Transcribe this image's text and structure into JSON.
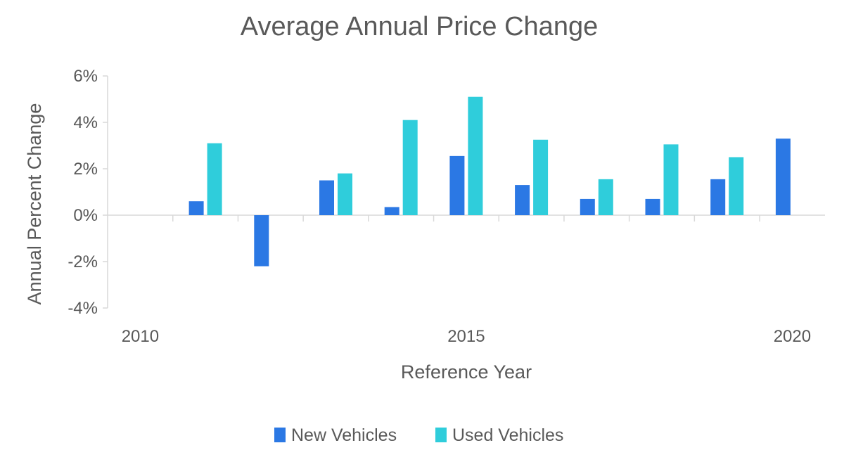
{
  "chart_data": {
    "type": "bar",
    "title": "Average Annual Price Change",
    "xlabel": "Reference Year",
    "ylabel": "Annual Percent Change",
    "categories": [
      2010,
      2011,
      2012,
      2013,
      2014,
      2015,
      2016,
      2017,
      2018,
      2019,
      2020
    ],
    "x_tick_labels": [
      "2010",
      "2015",
      "2020"
    ],
    "y_tick_labels": [
      "6%",
      "4%",
      "2%",
      "0%",
      "-2%",
      "-4%"
    ],
    "ylim": [
      -4,
      6
    ],
    "y_unit": "%",
    "grid": false,
    "legend_position": "bottom",
    "series": [
      {
        "name": "New Vehicles",
        "color": "#2b78e4",
        "values": [
          null,
          0.6,
          -2.2,
          1.5,
          0.35,
          2.55,
          1.3,
          0.7,
          0.7,
          1.55,
          3.3
        ]
      },
      {
        "name": "Used Vehicles",
        "color": "#2fcddb",
        "values": [
          null,
          3.1,
          null,
          1.8,
          4.1,
          5.1,
          3.25,
          1.55,
          3.05,
          2.5,
          null
        ]
      }
    ],
    "axis_color": "#d9d9d9"
  }
}
